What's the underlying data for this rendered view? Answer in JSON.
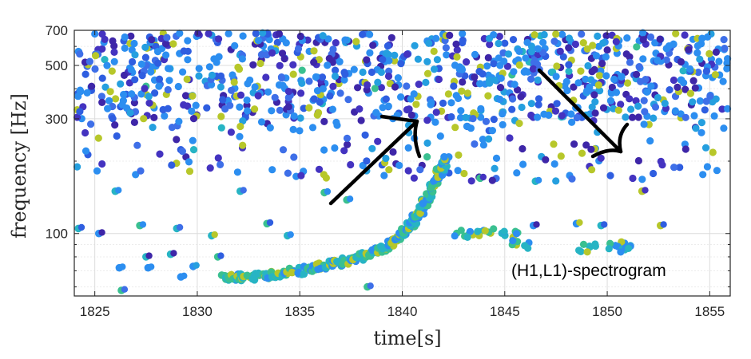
{
  "chart_data": {
    "type": "scatter",
    "title": "",
    "xlabel": "time[s]",
    "ylabel": "frequency [Hz]",
    "xlim": [
      1824,
      1856
    ],
    "ylim": [
      55,
      700
    ],
    "y_scale": "log",
    "grid": true,
    "x_ticks": [
      1825,
      1830,
      1835,
      1840,
      1845,
      1850,
      1855
    ],
    "x_tick_labels": [
      "1825",
      "1830",
      "1835",
      "1840",
      "1845",
      "1850",
      "1855"
    ],
    "y_ticks": [
      100,
      300,
      500,
      700
    ],
    "y_tick_labels": [
      "100",
      "300",
      "500",
      "700"
    ],
    "annotation": "(H1,L1)-spectrogram",
    "colors": {
      "low": "#3e26a8",
      "mid": "#2c8ef0",
      "high": "#3ac090",
      "peak": "#b7c72a",
      "arrow": "#000000"
    },
    "chirp_track": [
      {
        "x": 1831.3,
        "y": 65
      },
      {
        "x": 1832.5,
        "y": 66
      },
      {
        "x": 1834.0,
        "y": 68
      },
      {
        "x": 1835.5,
        "y": 71
      },
      {
        "x": 1837.0,
        "y": 76
      },
      {
        "x": 1838.5,
        "y": 82
      },
      {
        "x": 1839.5,
        "y": 92
      },
      {
        "x": 1840.3,
        "y": 105
      },
      {
        "x": 1840.9,
        "y": 125
      },
      {
        "x": 1841.4,
        "y": 150
      },
      {
        "x": 1841.8,
        "y": 180
      },
      {
        "x": 1842.2,
        "y": 210
      }
    ],
    "side_tracks": [
      {
        "x": 1843.0,
        "y": 100
      },
      {
        "x": 1844.0,
        "y": 101
      },
      {
        "x": 1845.3,
        "y": 99
      },
      {
        "x": 1845.8,
        "y": 90
      },
      {
        "x": 1849.0,
        "y": 87
      },
      {
        "x": 1850.5,
        "y": 90
      },
      {
        "x": 1851.0,
        "y": 86
      }
    ],
    "sparse_points": [
      {
        "x": 1824.2,
        "y": 105
      },
      {
        "x": 1825.2,
        "y": 100
      },
      {
        "x": 1826.0,
        "y": 150
      },
      {
        "x": 1826.2,
        "y": 72
      },
      {
        "x": 1826.3,
        "y": 58
      },
      {
        "x": 1827.2,
        "y": 108
      },
      {
        "x": 1827.5,
        "y": 80
      },
      {
        "x": 1827.6,
        "y": 72
      },
      {
        "x": 1828.7,
        "y": 82
      },
      {
        "x": 1829.0,
        "y": 105
      },
      {
        "x": 1829.2,
        "y": 66
      },
      {
        "x": 1829.8,
        "y": 73
      },
      {
        "x": 1830.7,
        "y": 98
      },
      {
        "x": 1831.0,
        "y": 80
      },
      {
        "x": 1832.1,
        "y": 150
      },
      {
        "x": 1833.4,
        "y": 110
      },
      {
        "x": 1834.4,
        "y": 98
      },
      {
        "x": 1836.2,
        "y": 148
      },
      {
        "x": 1837.3,
        "y": 138
      },
      {
        "x": 1838.3,
        "y": 60
      },
      {
        "x": 1843.8,
        "y": 170
      },
      {
        "x": 1846.4,
        "y": 108
      },
      {
        "x": 1846.5,
        "y": 165
      },
      {
        "x": 1848.5,
        "y": 110
      },
      {
        "x": 1849.7,
        "y": 108
      },
      {
        "x": 1851.7,
        "y": 150
      },
      {
        "x": 1852.6,
        "y": 108
      },
      {
        "x": 1855.9,
        "y": 56
      }
    ],
    "background_cloud": {
      "x_range": [
        1824,
        1856
      ],
      "y_range": [
        300,
        700
      ],
      "sparse_y_range": [
        165,
        300
      ]
    }
  }
}
